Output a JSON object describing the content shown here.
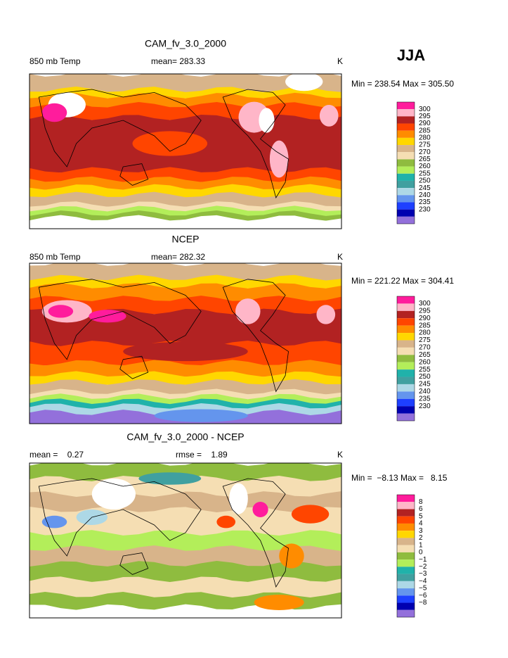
{
  "header": {
    "season": "JJA"
  },
  "panels": [
    {
      "title": "CAM_fv_3.0_2000",
      "left_label": "850 mb Temp",
      "center_label": "mean= 283.33",
      "units": "K",
      "stats": "Min = 238.54 Max = 305.50",
      "colorbar": {
        "labels": [
          "300",
          "295",
          "290",
          "285",
          "280",
          "275",
          "270",
          "265",
          "260",
          "255",
          "250",
          "245",
          "240",
          "235",
          "230"
        ],
        "colors": [
          "#ff1c9c",
          "#ffb6c8",
          "#b22222",
          "#ff4500",
          "#ff8c00",
          "#ffd700",
          "#d8b48a",
          "#f5deb3",
          "#8fbc3f",
          "#b3ee5a",
          "#20b2aa",
          "#40a0a0",
          "#add8e6",
          "#6495ed",
          "#1e40ff",
          "#0000b0",
          "#9370db"
        ]
      }
    },
    {
      "title": "NCEP",
      "left_label": "850 mb Temp",
      "center_label": "mean= 282.32",
      "units": "K",
      "stats": "Min = 221.22 Max = 304.41",
      "colorbar": {
        "labels": [
          "300",
          "295",
          "290",
          "285",
          "280",
          "275",
          "270",
          "265",
          "260",
          "255",
          "250",
          "245",
          "240",
          "235",
          "230"
        ],
        "colors": [
          "#ff1c9c",
          "#ffb6c8",
          "#b22222",
          "#ff4500",
          "#ff8c00",
          "#ffd700",
          "#d8b48a",
          "#f5deb3",
          "#8fbc3f",
          "#b3ee5a",
          "#20b2aa",
          "#40a0a0",
          "#add8e6",
          "#6495ed",
          "#1e40ff",
          "#0000b0",
          "#9370db"
        ]
      }
    },
    {
      "title": "CAM_fv_3.0_2000 - NCEP",
      "left_label": "mean =    0.27",
      "center_label": "rmse =    1.89",
      "units": "K",
      "stats": "Min =  −8.13 Max =   8.15",
      "colorbar": {
        "labels": [
          "8",
          "6",
          "5",
          "4",
          "3",
          "2",
          "1",
          "0",
          "−1",
          "−2",
          "−3",
          "−4",
          "−5",
          "−6",
          "−8"
        ],
        "colors": [
          "#ff1c9c",
          "#ffb6c8",
          "#b22222",
          "#ff4500",
          "#ff8c00",
          "#ffd700",
          "#d8b48a",
          "#f5deb3",
          "#8fbc3f",
          "#b3ee5a",
          "#20b2aa",
          "#40a0a0",
          "#add8e6",
          "#6495ed",
          "#1e40ff",
          "#0000b0",
          "#9370db"
        ]
      }
    }
  ]
}
